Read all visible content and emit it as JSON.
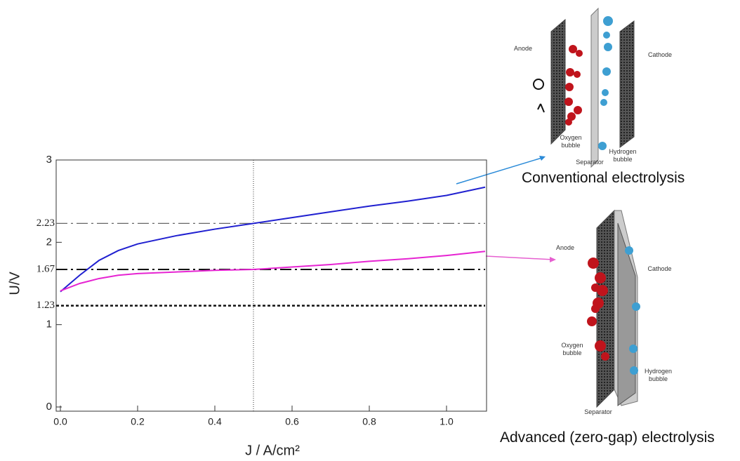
{
  "chart_data": {
    "type": "line",
    "xlabel": "J / A/cm²",
    "ylabel": "U/V",
    "x": [
      0,
      0.05,
      0.1,
      0.15,
      0.2,
      0.3,
      0.4,
      0.5,
      0.6,
      0.7,
      0.8,
      0.9,
      1.0,
      1.1
    ],
    "series": [
      {
        "color": "#2020d0",
        "values": [
          1.4,
          1.6,
          1.78,
          1.9,
          1.98,
          2.08,
          2.16,
          2.23,
          2.3,
          2.37,
          2.44,
          2.5,
          2.57,
          2.67
        ]
      },
      {
        "color": "#e624d2",
        "values": [
          1.41,
          1.5,
          1.56,
          1.6,
          1.62,
          1.64,
          1.66,
          1.67,
          1.7,
          1.73,
          1.77,
          1.8,
          1.84,
          1.89
        ]
      }
    ],
    "xlim": [
      0,
      1.1
    ],
    "ylim": [
      0,
      3
    ],
    "xticks": [
      {
        "value": 0,
        "label": "0.0"
      },
      0.2,
      0.4,
      0.6,
      0.8,
      {
        "value": 1,
        "label": "1.0"
      }
    ],
    "yticks": [
      0,
      1,
      2,
      3
    ],
    "hlines": [
      2.23,
      1.67,
      1.23
    ],
    "vline": 0.5
  },
  "diagrams": [
    {
      "title": "Conventional electrolysis",
      "labels": [
        "Anode",
        "Cathode",
        "Oxygen bubble",
        "Hydrogen bubble",
        "Separator"
      ]
    },
    {
      "title": "Advanced (zero-gap) electrolysis",
      "labels": [
        "Anode",
        "Cathode",
        "Oxygen bubble",
        "Hydrogen bubble",
        "Separator"
      ]
    }
  ]
}
